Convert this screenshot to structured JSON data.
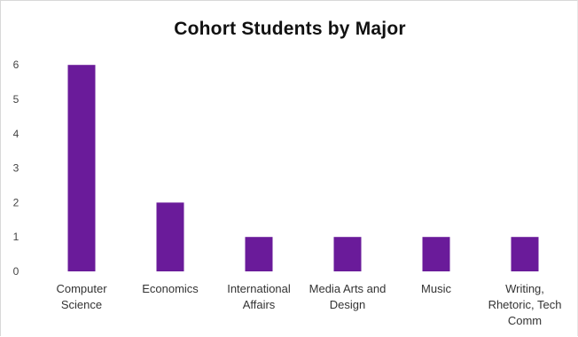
{
  "chart_data": {
    "type": "bar",
    "title": "Cohort Students by Major",
    "xlabel": "",
    "ylabel": "",
    "categories": [
      [
        "Computer",
        "Science"
      ],
      [
        "Economics"
      ],
      [
        "International",
        "Affairs"
      ],
      [
        "Media Arts and",
        "Design"
      ],
      [
        "Music"
      ],
      [
        "Writing,",
        "Rhetoric, Tech",
        "Comm"
      ]
    ],
    "values": [
      6,
      2,
      1,
      1,
      1,
      1
    ],
    "yticks": [
      "0",
      "1",
      "2",
      "3",
      "4",
      "5",
      "6"
    ],
    "ylim": [
      0,
      6
    ],
    "grid": false,
    "legend": "none",
    "bar_color": "#6a1b9a"
  }
}
